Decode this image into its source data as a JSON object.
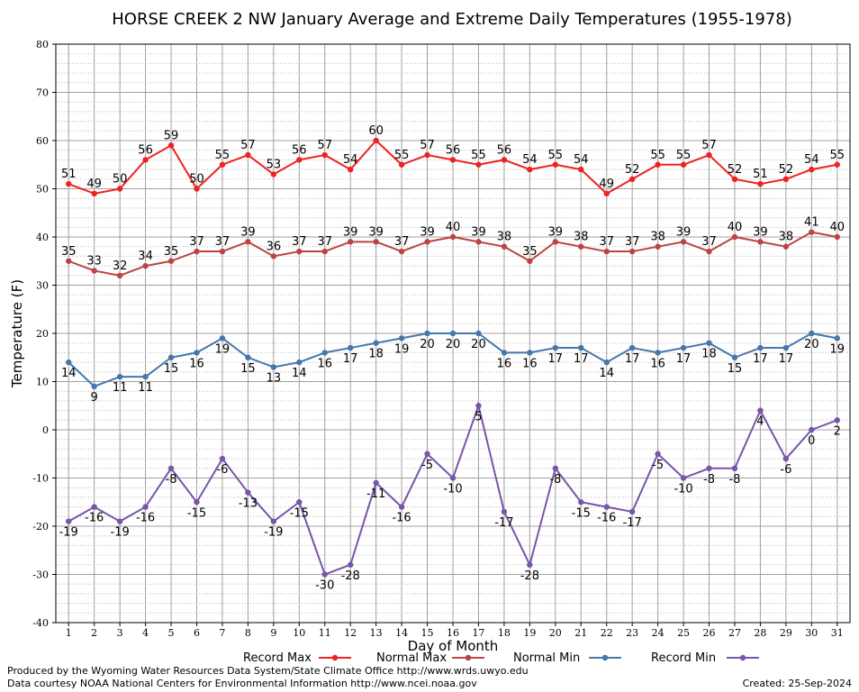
{
  "chart_data": {
    "type": "line",
    "title": "HORSE CREEK 2 NW January Average and Extreme Daily Temperatures (1955-1978)",
    "xlabel": "Day of Month",
    "ylabel": "Temperature (F)",
    "ylim": [
      -40,
      80
    ],
    "yticks": [
      -40,
      -30,
      -20,
      -10,
      0,
      10,
      20,
      30,
      40,
      50,
      60,
      70,
      80
    ],
    "x": [
      1,
      2,
      3,
      4,
      5,
      6,
      7,
      8,
      9,
      10,
      11,
      12,
      13,
      14,
      15,
      16,
      17,
      18,
      19,
      20,
      21,
      22,
      23,
      24,
      25,
      26,
      27,
      28,
      29,
      30,
      31
    ],
    "grid": true,
    "legend_position": "bottom",
    "series": [
      {
        "name": "Record Max",
        "color": "#ee2222",
        "label_pos": "above",
        "values": [
          51,
          49,
          50,
          56,
          59,
          50,
          55,
          57,
          53,
          56,
          57,
          54,
          60,
          55,
          57,
          56,
          55,
          56,
          54,
          55,
          54,
          49,
          52,
          55,
          55,
          57,
          52,
          51,
          52,
          54,
          55
        ]
      },
      {
        "name": "Normal Max",
        "color": "#bb4444",
        "label_pos": "above",
        "values": [
          35,
          33,
          32,
          34,
          35,
          37,
          37,
          39,
          36,
          37,
          37,
          39,
          39,
          37,
          39,
          40,
          39,
          38,
          35,
          39,
          38,
          37,
          37,
          38,
          39,
          37,
          40,
          39,
          38,
          41,
          40
        ]
      },
      {
        "name": "Normal Min",
        "color": "#4477aa",
        "label_pos": "below",
        "values": [
          14,
          9,
          11,
          11,
          15,
          16,
          19,
          15,
          13,
          14,
          16,
          17,
          18,
          19,
          20,
          20,
          20,
          16,
          16,
          17,
          17,
          14,
          17,
          16,
          17,
          18,
          15,
          17,
          17,
          20,
          19
        ]
      },
      {
        "name": "Record Min",
        "color": "#7755aa",
        "label_pos": "below",
        "values": [
          -19,
          -16,
          -19,
          -16,
          -8,
          -15,
          -6,
          -13,
          -19,
          -15,
          -30,
          -28,
          -11,
          -16,
          -5,
          -10,
          5,
          -17,
          -28,
          -8,
          -15,
          -16,
          -17,
          -5,
          -10,
          -8,
          -8,
          4,
          -6,
          0,
          2
        ]
      }
    ]
  },
  "footer": {
    "produced_by": "Produced by the Wyoming Water Resources Data System/State Climate Office http://www.wrds.uwyo.edu",
    "courtesy": "Data courtesy NOAA National Centers for Environmental Information http://www.ncei.noaa.gov",
    "created": "Created:  25-Sep-2024"
  }
}
